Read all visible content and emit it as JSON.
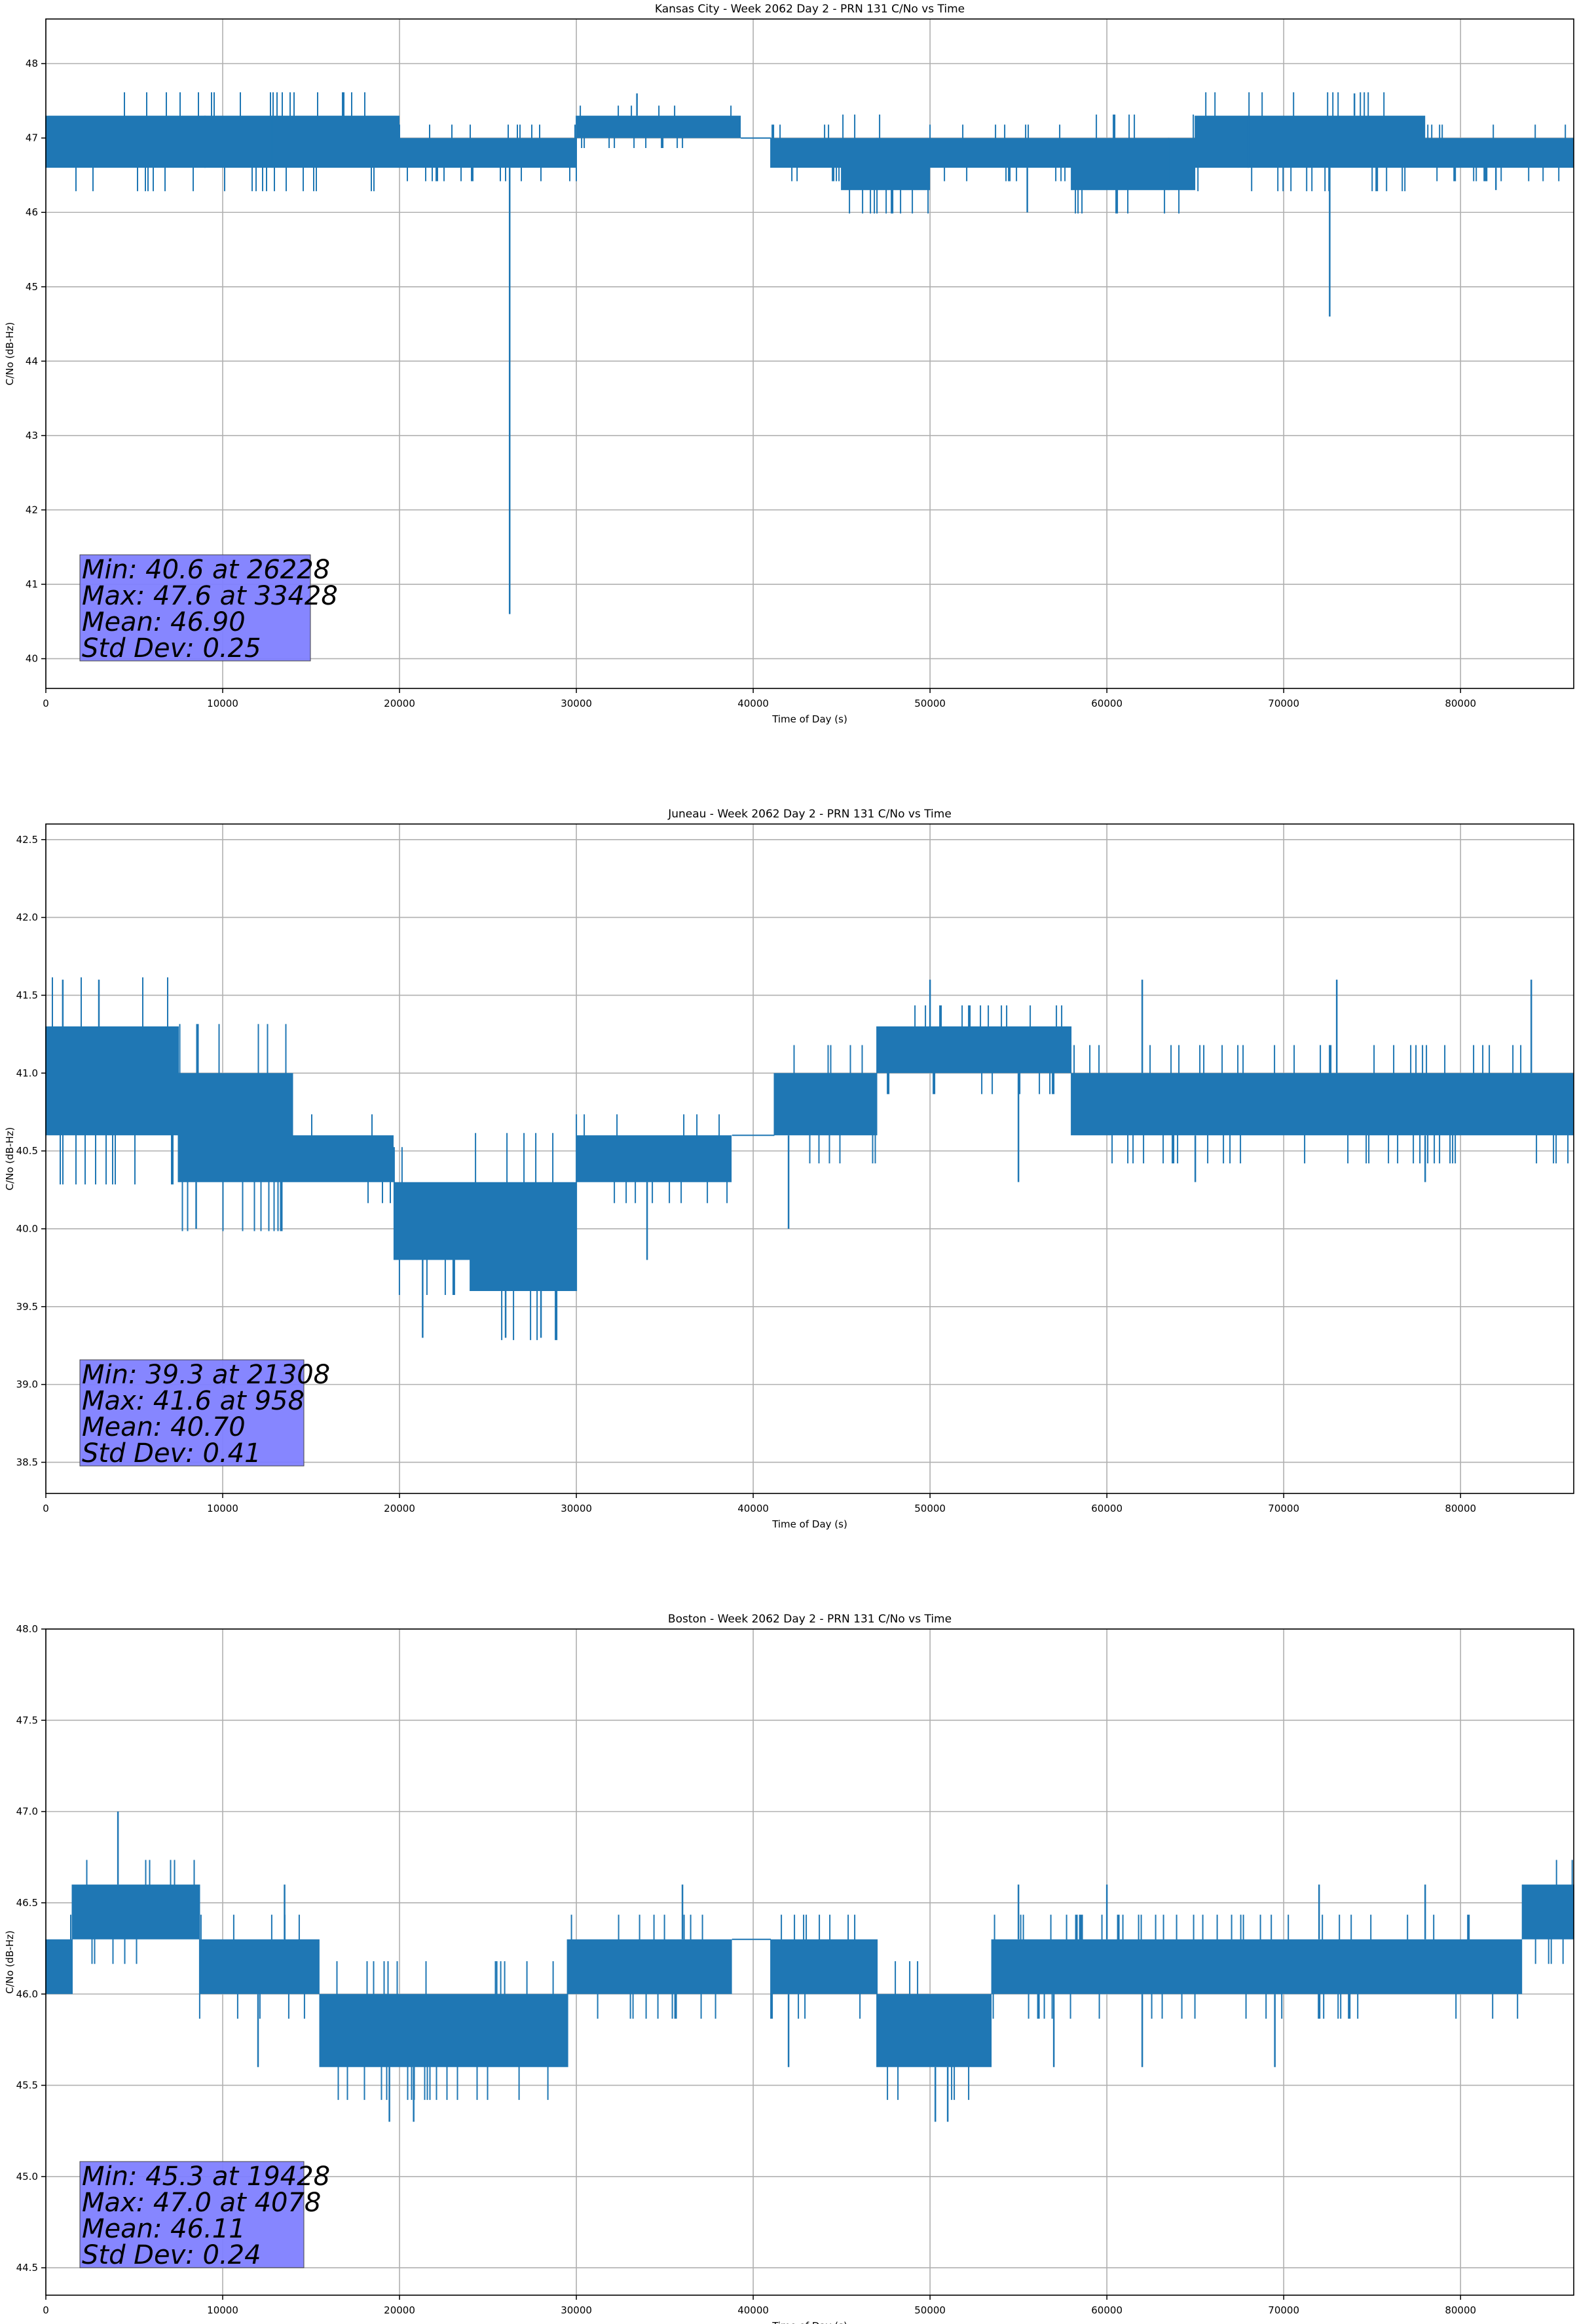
{
  "chart_data": [
    {
      "type": "line",
      "title": "Kansas City - Week 2062 Day 2 - PRN 131 C/No vs Time",
      "xlabel": "Time of Day (s)",
      "ylabel": "C/No (dB-Hz)",
      "xlim": [
        0,
        86400
      ],
      "ylim": [
        39.6,
        48.6
      ],
      "xticks": [
        0,
        10000,
        20000,
        30000,
        40000,
        50000,
        60000,
        70000,
        80000
      ],
      "yticks": [
        40,
        41,
        42,
        43,
        44,
        45,
        46,
        47,
        48
      ],
      "grid": true,
      "color": "#1f77b4",
      "segments": [
        {
          "x": [
            0,
            7000
          ],
          "lo": 46.6,
          "hi": 47.3
        },
        {
          "x": [
            7000,
            20000
          ],
          "lo": 46.6,
          "hi": 47.3
        },
        {
          "x": [
            20000,
            30000
          ],
          "lo": 46.6,
          "hi": 47.0
        },
        {
          "x": [
            30000,
            39300
          ],
          "lo": 47.0,
          "hi": 47.3
        },
        {
          "x": [
            39300,
            41000
          ],
          "lo": 47.0,
          "hi": 47.0
        },
        {
          "x": [
            41000,
            45000
          ],
          "lo": 46.6,
          "hi": 47.0
        },
        {
          "x": [
            45000,
            50000
          ],
          "lo": 46.3,
          "hi": 47.0
        },
        {
          "x": [
            50000,
            58000
          ],
          "lo": 46.6,
          "hi": 47.0
        },
        {
          "x": [
            58000,
            65000
          ],
          "lo": 46.3,
          "hi": 47.0
        },
        {
          "x": [
            65000,
            78000
          ],
          "lo": 46.6,
          "hi": 47.3
        },
        {
          "x": [
            78000,
            86400
          ],
          "lo": 46.6,
          "hi": 47.0
        }
      ],
      "spikes": [
        [
          26228,
          40.6
        ],
        [
          33428,
          47.6
        ],
        [
          55500,
          46.0
        ],
        [
          72600,
          44.6
        ],
        [
          74000,
          47.6
        ],
        [
          9000,
          46.6
        ],
        [
          47000,
          46.3
        ],
        [
          63500,
          46.3
        ],
        [
          12800,
          46.6
        ],
        [
          41600,
          47.0
        ],
        [
          68000,
          46.6
        ],
        [
          82000,
          46.3
        ]
      ],
      "stats": [
        "Min: 40.6 at 26228",
        "Max: 47.6 at 33428",
        "Mean: 46.90",
        "Std Dev: 0.25"
      ],
      "stats_box_color": "#8080ff"
    },
    {
      "type": "line",
      "title": "Juneau - Week 2062 Day 2 - PRN 131 C/No vs Time",
      "xlabel": "Time of Day (s)",
      "ylabel": "C/No (dB-Hz)",
      "xlim": [
        0,
        86400
      ],
      "ylim": [
        38.3,
        42.6
      ],
      "xticks": [
        0,
        10000,
        20000,
        30000,
        40000,
        50000,
        60000,
        70000,
        80000
      ],
      "yticks": [
        38.5,
        39.0,
        39.5,
        40.0,
        40.5,
        41.0,
        41.5,
        42.0,
        42.5
      ],
      "grid": true,
      "color": "#1f77b4",
      "segments": [
        {
          "x": [
            0,
            7500
          ],
          "lo": 40.6,
          "hi": 41.3
        },
        {
          "x": [
            7500,
            14000
          ],
          "lo": 40.3,
          "hi": 41.0
        },
        {
          "x": [
            14000,
            19700
          ],
          "lo": 40.3,
          "hi": 40.6
        },
        {
          "x": [
            19700,
            24000
          ],
          "lo": 39.8,
          "hi": 40.3
        },
        {
          "x": [
            24000,
            30000
          ],
          "lo": 39.6,
          "hi": 40.3
        },
        {
          "x": [
            30000,
            38800
          ],
          "lo": 40.3,
          "hi": 40.6
        },
        {
          "x": [
            38800,
            41200
          ],
          "lo": 40.6,
          "hi": 40.6
        },
        {
          "x": [
            41200,
            47000
          ],
          "lo": 40.6,
          "hi": 41.0
        },
        {
          "x": [
            47000,
            58000
          ],
          "lo": 41.0,
          "hi": 41.3
        },
        {
          "x": [
            58000,
            86400
          ],
          "lo": 40.6,
          "hi": 41.0
        }
      ],
      "spikes": [
        [
          958,
          41.6
        ],
        [
          21308,
          39.3
        ],
        [
          8500,
          40.0
        ],
        [
          26000,
          39.3
        ],
        [
          28000,
          39.3
        ],
        [
          42000,
          40.0
        ],
        [
          50000,
          41.6
        ],
        [
          62000,
          41.6
        ],
        [
          73000,
          41.6
        ],
        [
          84000,
          41.6
        ],
        [
          55000,
          40.3
        ],
        [
          3000,
          41.6
        ],
        [
          34000,
          39.8
        ],
        [
          65000,
          40.3
        ],
        [
          78000,
          40.3
        ]
      ],
      "stats": [
        "Min: 39.3 at 21308",
        "Max: 41.6 at 958",
        "Mean: 40.70",
        "Std Dev: 0.41"
      ],
      "stats_box_color": "#8080ff"
    },
    {
      "type": "line",
      "title": "Boston - Week 2062 Day 2 - PRN 131 C/No vs Time",
      "xlabel": "Time of Day (s)",
      "ylabel": "C/No (dB-Hz)",
      "xlim": [
        0,
        86400
      ],
      "ylim": [
        44.35,
        48.0
      ],
      "xticks": [
        0,
        10000,
        20000,
        30000,
        40000,
        50000,
        60000,
        70000,
        80000
      ],
      "yticks": [
        44.5,
        45.0,
        45.5,
        46.0,
        46.5,
        47.0,
        47.5,
        48.0
      ],
      "grid": true,
      "color": "#1f77b4",
      "segments": [
        {
          "x": [
            0,
            1500
          ],
          "lo": 46.0,
          "hi": 46.3
        },
        {
          "x": [
            1500,
            8700
          ],
          "lo": 46.3,
          "hi": 46.6
        },
        {
          "x": [
            8700,
            15500
          ],
          "lo": 46.0,
          "hi": 46.3
        },
        {
          "x": [
            15500,
            25500
          ],
          "lo": 45.6,
          "hi": 46.0
        },
        {
          "x": [
            25500,
            29500
          ],
          "lo": 45.6,
          "hi": 46.0
        },
        {
          "x": [
            29500,
            38800
          ],
          "lo": 46.0,
          "hi": 46.3
        },
        {
          "x": [
            38800,
            41000
          ],
          "lo": 46.3,
          "hi": 46.3
        },
        {
          "x": [
            41000,
            47000
          ],
          "lo": 46.0,
          "hi": 46.3
        },
        {
          "x": [
            47000,
            53500
          ],
          "lo": 45.6,
          "hi": 46.0
        },
        {
          "x": [
            53500,
            69000
          ],
          "lo": 46.0,
          "hi": 46.3
        },
        {
          "x": [
            69000,
            83500
          ],
          "lo": 46.0,
          "hi": 46.3
        },
        {
          "x": [
            83500,
            86400
          ],
          "lo": 46.3,
          "hi": 46.6
        }
      ],
      "spikes": [
        [
          4078,
          47.0
        ],
        [
          19428,
          45.3
        ],
        [
          20800,
          45.3
        ],
        [
          50300,
          45.3
        ],
        [
          51000,
          45.3
        ],
        [
          12000,
          45.6
        ],
        [
          42000,
          45.6
        ],
        [
          57000,
          45.6
        ],
        [
          62000,
          45.6
        ],
        [
          69500,
          45.6
        ],
        [
          36000,
          46.6
        ],
        [
          55000,
          46.6
        ],
        [
          60000,
          46.6
        ],
        [
          72000,
          46.6
        ],
        [
          78000,
          46.6
        ],
        [
          13500,
          46.6
        ]
      ],
      "stats": [
        "Min: 45.3 at 19428",
        "Max: 47.0 at 4078",
        "Mean: 46.11",
        "Std Dev: 0.24"
      ],
      "stats_box_color": "#8080ff"
    }
  ]
}
